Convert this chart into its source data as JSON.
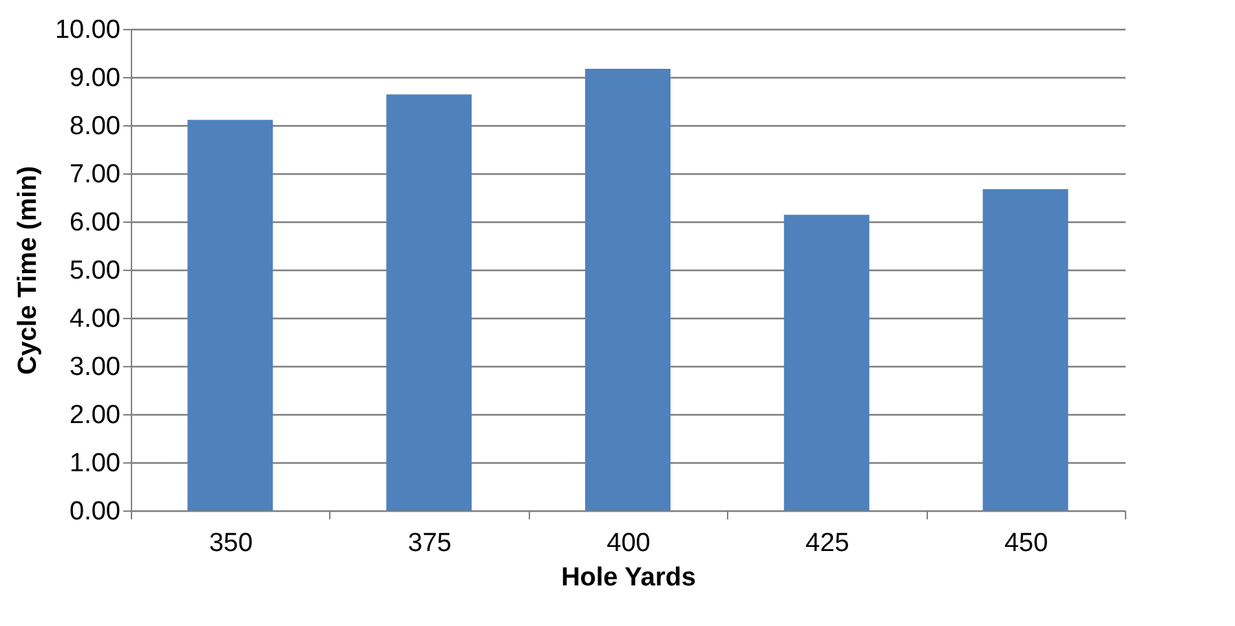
{
  "chart_data": {
    "type": "bar",
    "xlabel": "Hole Yards",
    "ylabel": "Cycle Time (min)",
    "categories": [
      "350",
      "375",
      "400",
      "425",
      "450"
    ],
    "values": [
      8.11,
      8.64,
      9.17,
      6.14,
      6.67
    ],
    "color": "#4f81bd",
    "ylim": [
      0,
      10
    ],
    "yticks": [
      {
        "value": 0,
        "label": "0.00"
      },
      {
        "value": 1,
        "label": "1.00"
      },
      {
        "value": 2,
        "label": "2.00"
      },
      {
        "value": 3,
        "label": "3.00"
      },
      {
        "value": 4,
        "label": "4.00"
      },
      {
        "value": 5,
        "label": "5.00"
      },
      {
        "value": 6,
        "label": "6.00"
      },
      {
        "value": 7,
        "label": "7.00"
      },
      {
        "value": 8,
        "label": "8.00"
      },
      {
        "value": 9,
        "label": "9.00"
      },
      {
        "value": 10,
        "label": "10.00"
      }
    ],
    "grid": "y"
  }
}
